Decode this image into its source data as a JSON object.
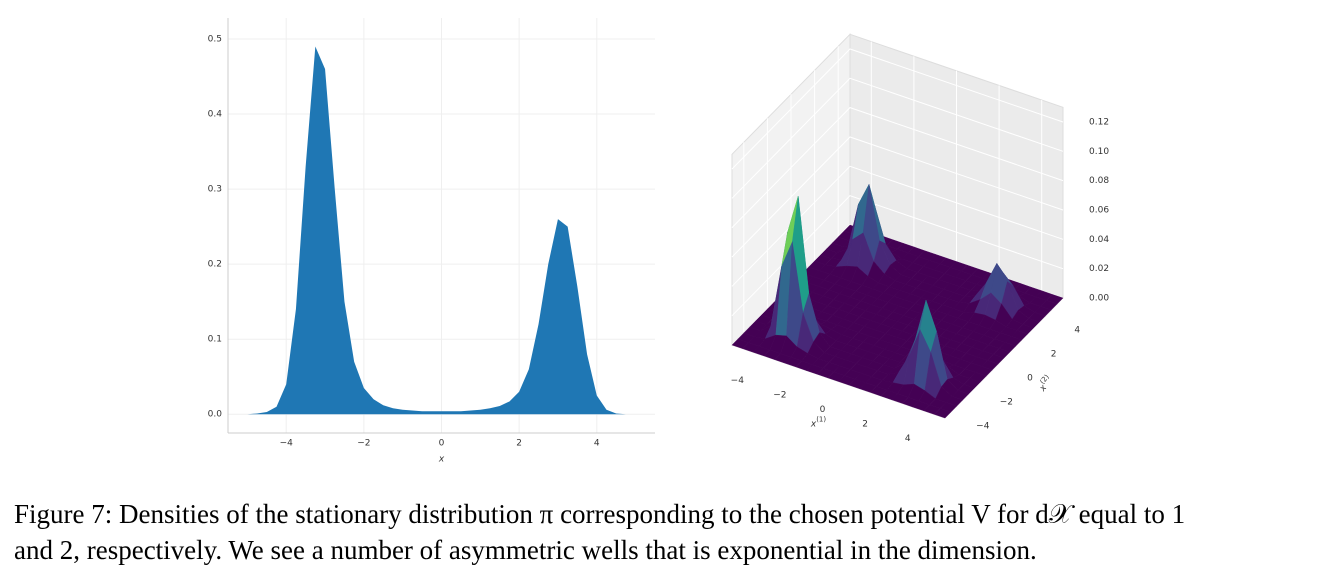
{
  "chart_data": [
    {
      "type": "area",
      "xlabel": "x",
      "color": "#1f77b4",
      "x": [
        -5,
        -4.75,
        -4.5,
        -4.25,
        -4,
        -3.75,
        -3.5,
        -3.25,
        -3,
        -2.75,
        -2.5,
        -2.25,
        -2,
        -1.75,
        -1.5,
        -1.25,
        -1,
        -0.75,
        -0.5,
        -0.25,
        0,
        0.25,
        0.5,
        0.75,
        1,
        1.25,
        1.5,
        1.75,
        2,
        2.25,
        2.5,
        2.75,
        3,
        3.25,
        3.5,
        3.75,
        4,
        4.25,
        4.5,
        4.75,
        5
      ],
      "values": [
        0,
        0.001,
        0.003,
        0.01,
        0.04,
        0.14,
        0.33,
        0.49,
        0.46,
        0.3,
        0.15,
        0.07,
        0.035,
        0.02,
        0.012,
        0.008,
        0.006,
        0.005,
        0.004,
        0.004,
        0.004,
        0.004,
        0.004,
        0.005,
        0.006,
        0.008,
        0.011,
        0.017,
        0.03,
        0.06,
        0.12,
        0.2,
        0.26,
        0.25,
        0.17,
        0.08,
        0.025,
        0.006,
        0.001,
        0,
        0
      ],
      "xlim": [
        -5.5,
        5.5
      ],
      "xticks": [
        {
          "value": -4,
          "label": "−4"
        },
        {
          "value": -2,
          "label": "−2"
        },
        0,
        2,
        4
      ],
      "ylim": [
        -0.025,
        0.528
      ],
      "yticks": [
        {
          "value": 0,
          "label": "0.0"
        },
        0.1,
        0.2,
        0.3,
        0.4,
        0.5
      ],
      "grid": true
    },
    {
      "type": "surface3d",
      "colormap": "viridis",
      "xlabel": "x",
      "xlabel_sup": "(1)",
      "ylabel": "x",
      "ylabel_sup": "(2)",
      "x": [
        -5,
        -4.5,
        -4,
        -3.5,
        -3,
        -2.5,
        -2,
        -1.5,
        -1,
        -0.5,
        0,
        0.5,
        1,
        1.5,
        2,
        2.5,
        3,
        3.5,
        4,
        4.5,
        5
      ],
      "y": [
        -5,
        -4.5,
        -4,
        -3.5,
        -3,
        -2.5,
        -2,
        -1.5,
        -1,
        -0.5,
        0,
        0.5,
        1,
        1.5,
        2,
        2.5,
        3,
        3.5,
        4,
        4.5,
        5
      ],
      "z": [
        [
          0,
          0,
          0,
          0,
          0,
          0,
          0,
          0,
          0,
          0,
          0,
          0,
          0,
          0,
          0,
          0,
          0,
          0,
          0,
          0,
          0
        ],
        [
          0,
          0,
          0,
          0,
          0,
          0,
          0,
          0,
          0,
          0,
          0,
          0,
          0,
          0,
          0,
          0,
          0,
          0,
          0,
          0,
          0
        ],
        [
          0,
          0,
          0.001,
          0.006,
          0.008,
          0.003,
          0.001,
          0,
          0,
          0,
          0,
          0,
          0,
          0,
          0.001,
          0.002,
          0.005,
          0.003,
          0,
          0,
          0
        ],
        [
          0,
          0,
          0.006,
          0.049,
          0.068,
          0.022,
          0.005,
          0,
          0,
          0,
          0,
          0,
          0,
          0,
          0.004,
          0.018,
          0.038,
          0.025,
          0.004,
          0,
          0
        ],
        [
          0,
          0,
          0.008,
          0.068,
          0.095,
          0.031,
          0.007,
          0,
          0,
          0,
          0,
          0,
          0,
          0,
          0.006,
          0.025,
          0.054,
          0.035,
          0.005,
          0,
          0
        ],
        [
          0,
          0,
          0.003,
          0.022,
          0.031,
          0.01,
          0.002,
          0,
          0,
          0,
          0,
          0,
          0,
          0,
          0.002,
          0.008,
          0.018,
          0.012,
          0.002,
          0,
          0
        ],
        [
          0,
          0,
          0.001,
          0.005,
          0.007,
          0.002,
          0.001,
          0,
          0,
          0,
          0,
          0,
          0,
          0,
          0,
          0.002,
          0.004,
          0.003,
          0,
          0,
          0
        ],
        [
          0,
          0,
          0,
          0,
          0,
          0,
          0,
          0,
          0,
          0,
          0,
          0,
          0,
          0,
          0,
          0,
          0,
          0,
          0,
          0,
          0
        ],
        [
          0,
          0,
          0,
          0,
          0,
          0,
          0,
          0,
          0,
          0,
          0,
          0,
          0,
          0,
          0,
          0,
          0,
          0,
          0,
          0,
          0
        ],
        [
          0,
          0,
          0,
          0,
          0,
          0,
          0,
          0,
          0,
          0,
          0,
          0,
          0,
          0,
          0,
          0,
          0,
          0,
          0,
          0,
          0
        ],
        [
          0,
          0,
          0,
          0,
          0,
          0,
          0,
          0,
          0,
          0,
          0,
          0,
          0,
          0,
          0,
          0,
          0,
          0,
          0,
          0,
          0
        ],
        [
          0,
          0,
          0,
          0,
          0,
          0,
          0,
          0,
          0,
          0,
          0,
          0,
          0,
          0,
          0,
          0,
          0,
          0,
          0,
          0,
          0
        ],
        [
          0,
          0,
          0,
          0,
          0,
          0,
          0,
          0,
          0,
          0,
          0,
          0,
          0,
          0,
          0,
          0,
          0,
          0,
          0,
          0,
          0
        ],
        [
          0,
          0,
          0,
          0,
          0,
          0,
          0,
          0,
          0,
          0,
          0,
          0,
          0,
          0,
          0,
          0,
          0,
          0,
          0,
          0,
          0
        ],
        [
          0,
          0,
          0.001,
          0.004,
          0.006,
          0.002,
          0,
          0,
          0,
          0,
          0,
          0,
          0,
          0,
          0,
          0.002,
          0.003,
          0.002,
          0,
          0,
          0
        ],
        [
          0,
          0,
          0.002,
          0.018,
          0.025,
          0.008,
          0.002,
          0,
          0,
          0,
          0,
          0,
          0,
          0,
          0.002,
          0.007,
          0.014,
          0.009,
          0.001,
          0,
          0
        ],
        [
          0,
          0,
          0.005,
          0.038,
          0.054,
          0.018,
          0.004,
          0,
          0,
          0,
          0,
          0,
          0,
          0,
          0.003,
          0.014,
          0.03,
          0.02,
          0.003,
          0,
          0
        ],
        [
          0,
          0,
          0.003,
          0.025,
          0.035,
          0.012,
          0.003,
          0,
          0,
          0,
          0,
          0,
          0,
          0,
          0.002,
          0.009,
          0.02,
          0.013,
          0.002,
          0,
          0
        ],
        [
          0,
          0,
          0,
          0.004,
          0.005,
          0.002,
          0,
          0,
          0,
          0,
          0,
          0,
          0,
          0,
          0,
          0.001,
          0.003,
          0.002,
          0,
          0,
          0
        ],
        [
          0,
          0,
          0,
          0,
          0,
          0,
          0,
          0,
          0,
          0,
          0,
          0,
          0,
          0,
          0,
          0,
          0,
          0,
          0,
          0,
          0
        ],
        [
          0,
          0,
          0,
          0,
          0,
          0,
          0,
          0,
          0,
          0,
          0,
          0,
          0,
          0,
          0,
          0,
          0,
          0,
          0,
          0,
          0
        ]
      ],
      "xticks": [
        {
          "value": -4,
          "label": "−4"
        },
        {
          "value": -2,
          "label": "−2"
        },
        0,
        2,
        4
      ],
      "yticks": [
        {
          "value": -4,
          "label": "−4"
        },
        {
          "value": -2,
          "label": "−2"
        },
        0,
        2,
        4
      ],
      "zlim": [
        0,
        0.13
      ],
      "zticks": [
        {
          "value": 0,
          "label": "0.00"
        },
        {
          "value": 0.02,
          "label": "0.02"
        },
        {
          "value": 0.04,
          "label": "0.04"
        },
        {
          "value": 0.06,
          "label": "0.06"
        },
        {
          "value": 0.08,
          "label": "0.08"
        },
        {
          "value": 0.1,
          "label": "0.10"
        },
        {
          "value": 0.12,
          "label": "0.12"
        }
      ]
    }
  ],
  "caption": [
    "Figure 7: Densities of the stationary distribution π corresponding to the chosen potential V for d𝒳 equal to 1",
    "and 2, respectively. We see a number of asymmetric wells that is exponential in the dimension."
  ]
}
